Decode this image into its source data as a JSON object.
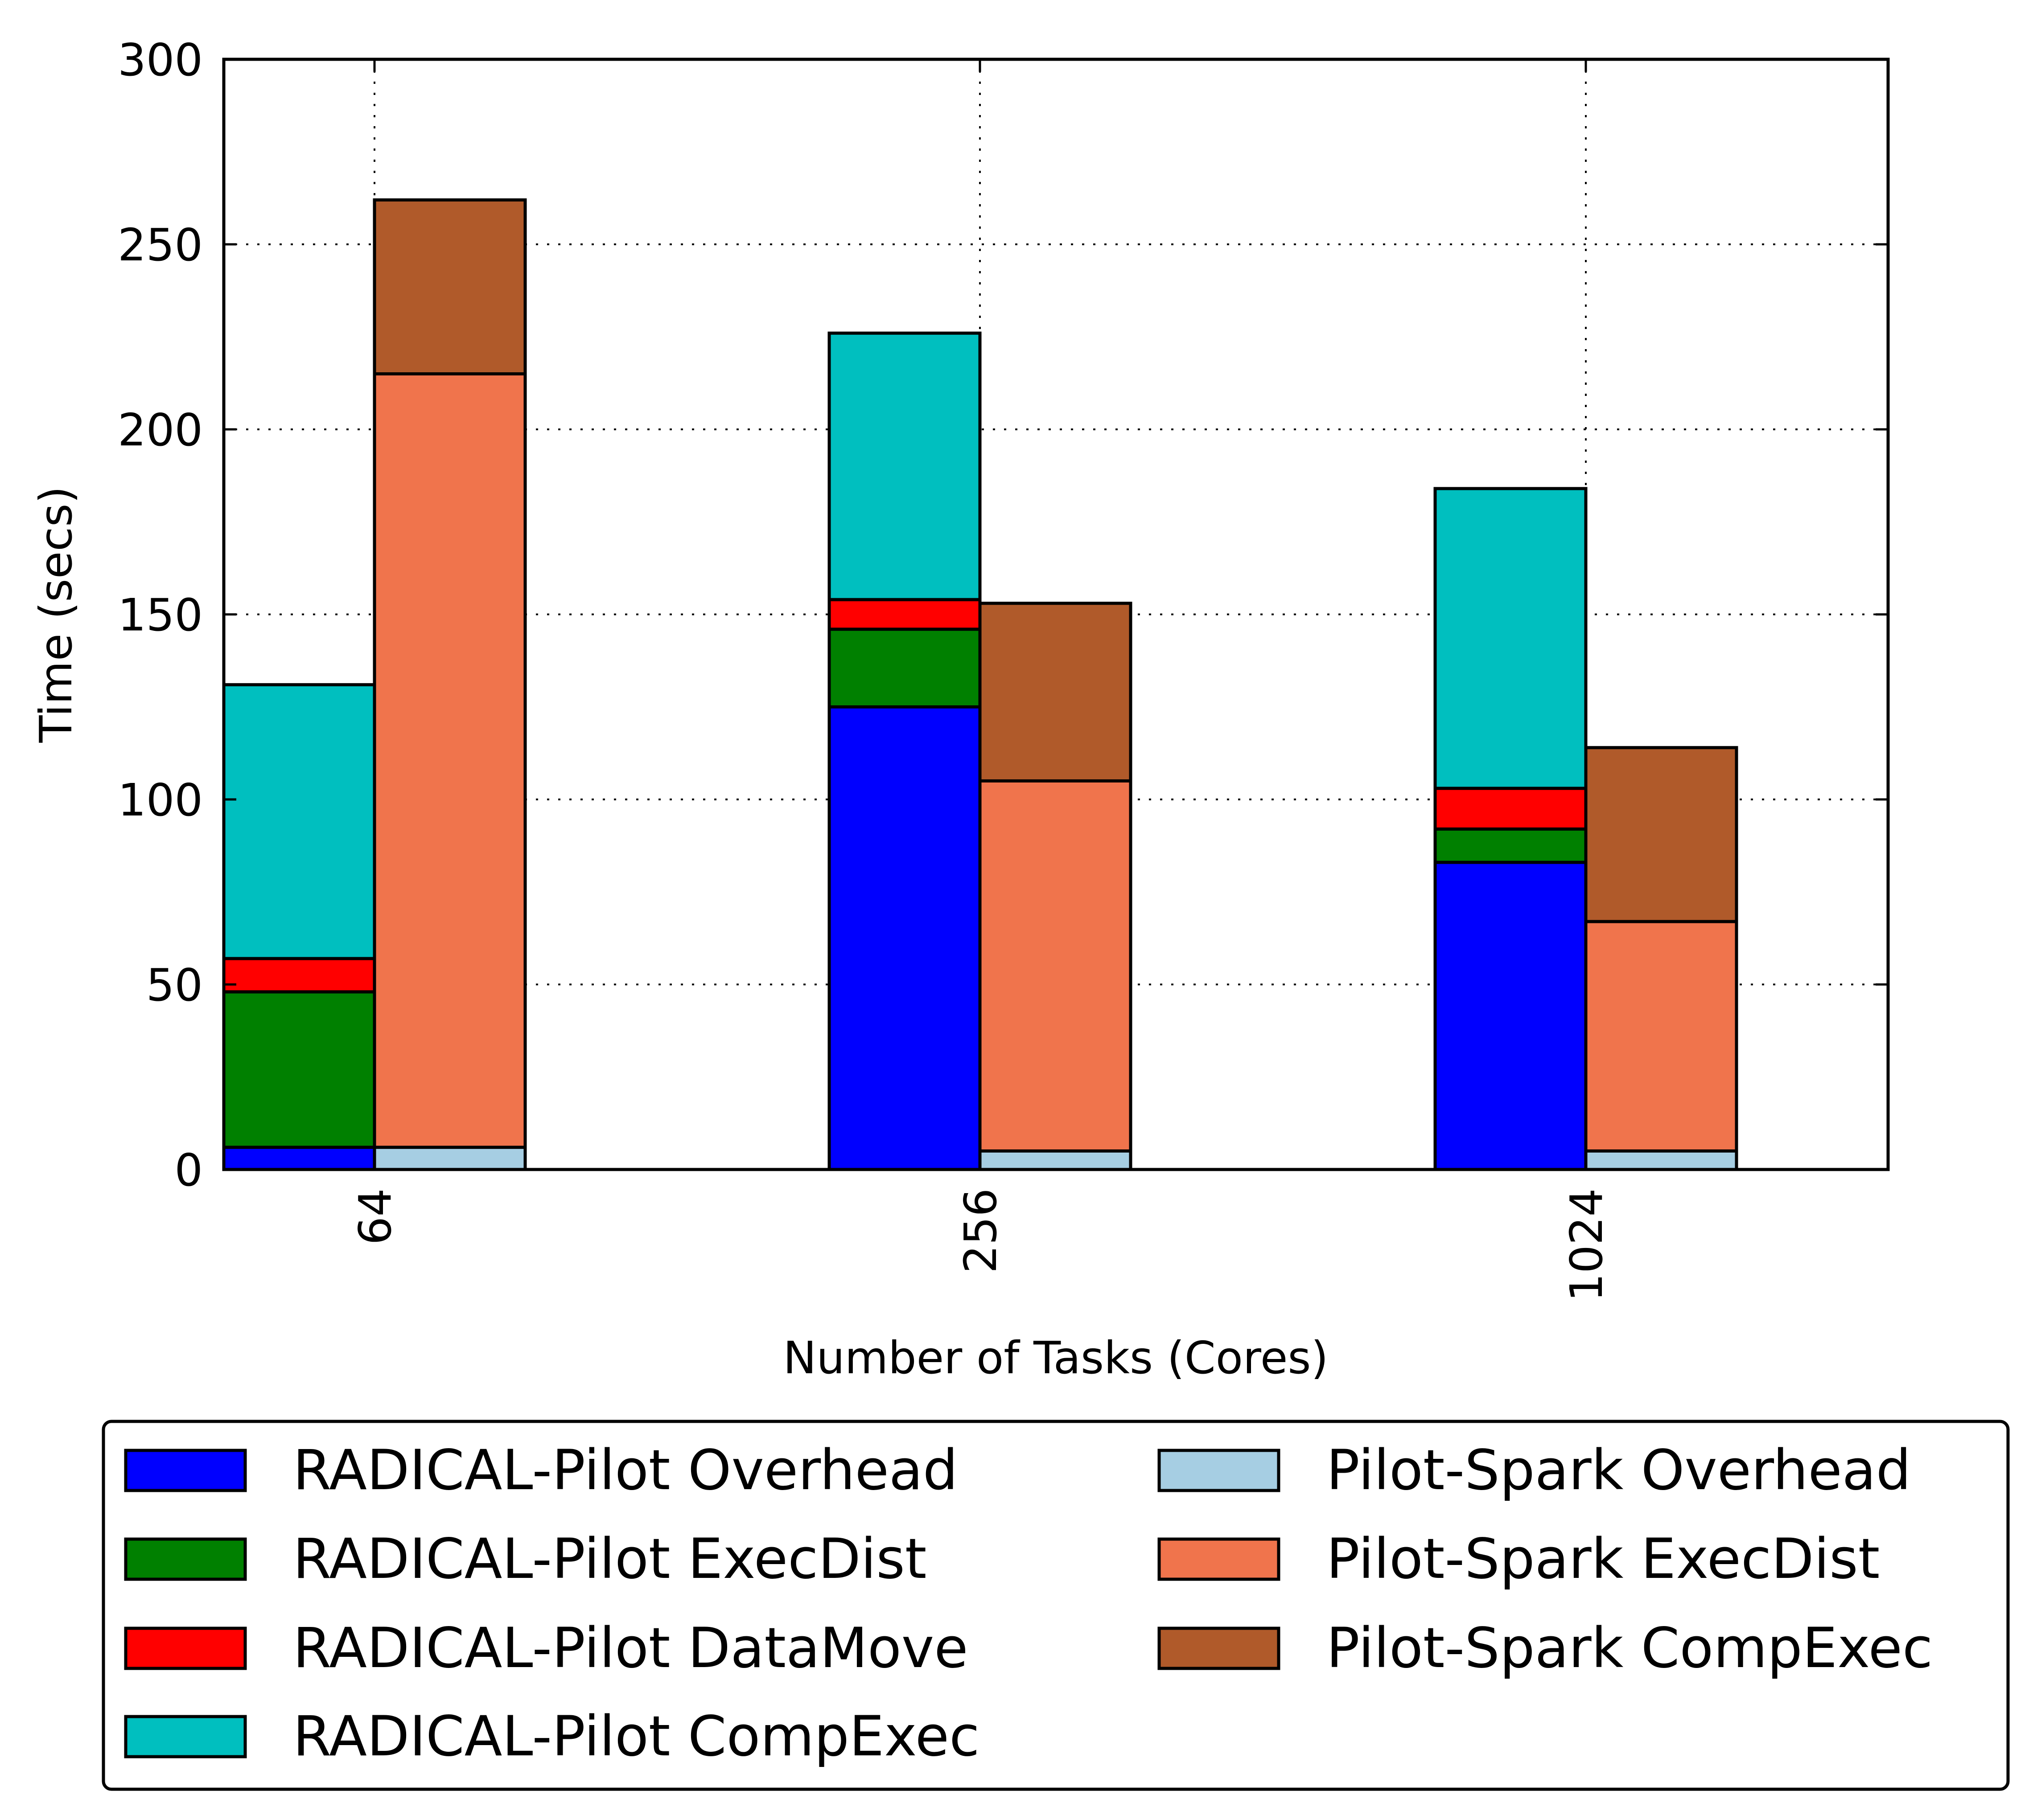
{
  "chart_data": {
    "type": "bar",
    "stacked": true,
    "grouped": true,
    "title": "",
    "xlabel": "Number of Tasks (Cores)",
    "ylabel": "Time (secs)",
    "ylim": [
      0,
      300
    ],
    "yticks": [
      0,
      50,
      100,
      150,
      200,
      250,
      300
    ],
    "categories": [
      "64",
      "256",
      "1024"
    ],
    "grid": true,
    "legend_position": "bottom",
    "groups": [
      {
        "name": "RADICAL-Pilot",
        "series": [
          {
            "name": "RADICAL-Pilot Overhead",
            "color": "#0000ff",
            "values": [
              6,
              125,
              83
            ]
          },
          {
            "name": "RADICAL-Pilot ExecDist",
            "color": "#008000",
            "values": [
              42,
              21,
              9
            ]
          },
          {
            "name": "RADICAL-Pilot DataMove",
            "color": "#ff0000",
            "values": [
              9,
              8,
              11
            ]
          },
          {
            "name": "RADICAL-Pilot CompExec",
            "color": "#00bfbf",
            "values": [
              74,
              72,
              81
            ]
          }
        ]
      },
      {
        "name": "Pilot-Spark",
        "series": [
          {
            "name": "Pilot-Spark Overhead",
            "color": "#a6cee3",
            "values": [
              6,
              5,
              5
            ]
          },
          {
            "name": "Pilot-Spark ExecDist",
            "color": "#f0744c",
            "values": [
              209,
              100,
              62
            ]
          },
          {
            "name": "Pilot-Spark CompExec",
            "color": "#b05a2a",
            "values": [
              47,
              48,
              47
            ]
          }
        ]
      }
    ]
  }
}
